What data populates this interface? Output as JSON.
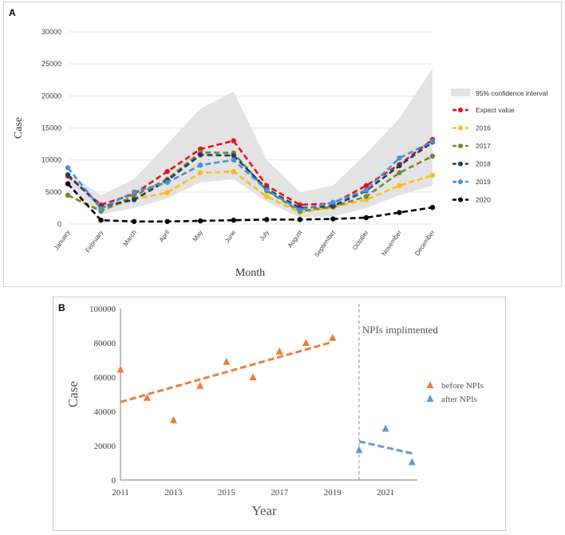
{
  "panel_a": {
    "letter": "A",
    "ylabel": "Case",
    "xlabel": "Month",
    "legend": {
      "ci_label": "95% confidence interval"
    },
    "colors": {
      "Expect value": "#e8111d",
      "2016": "#f5bf19",
      "2017": "#6f8b35",
      "2018": "#1f3f66",
      "2019": "#4a90d9",
      "2020": "#000000",
      "ci": "#e3e3e3"
    }
  },
  "panel_b": {
    "letter": "B",
    "ylabel": "Case",
    "xlabel": "Year",
    "annotation": "NPIs implimented",
    "legend": {
      "before": "before NPIs",
      "after": "after NPIs"
    },
    "colors": {
      "before": "#e8803a",
      "after": "#5b9bd5"
    }
  },
  "chart_data": [
    {
      "type": "line",
      "title": "",
      "xlabel": "Month",
      "ylabel": "Case",
      "ylim": [
        0,
        30000
      ],
      "yticks": [
        0,
        5000,
        10000,
        15000,
        20000,
        25000,
        30000
      ],
      "categories": [
        "January",
        "February",
        "March",
        "April",
        "May",
        "June",
        "July",
        "August",
        "September",
        "October",
        "November",
        "December"
      ],
      "grid": true,
      "legend_position": "right",
      "confidence_interval": {
        "name": "95% confidence interval",
        "lower": [
          6000,
          1500,
          2500,
          4000,
          6500,
          7000,
          3500,
          1000,
          1200,
          2500,
          4500,
          6000
        ],
        "upper": [
          8000,
          4500,
          7000,
          12500,
          18000,
          20700,
          10000,
          5000,
          6000,
          11000,
          16500,
          24300
        ]
      },
      "series": [
        {
          "name": "Expect value",
          "values": [
            7500,
            3000,
            4700,
            8200,
            11700,
            13000,
            6000,
            3000,
            3200,
            6000,
            9300,
            13200
          ]
        },
        {
          "name": "2016",
          "values": [
            4500,
            2200,
            3900,
            4900,
            8000,
            8200,
            4300,
            1800,
            2600,
            3800,
            6000,
            7600
          ]
        },
        {
          "name": "2017",
          "values": [
            4500,
            2000,
            4400,
            7000,
            11200,
            11100,
            5200,
            2000,
            2700,
            4300,
            8000,
            10600
          ]
        },
        {
          "name": "2018",
          "values": [
            7700,
            2700,
            3800,
            6800,
            10800,
            10700,
            5500,
            2500,
            2800,
            5200,
            9100,
            12800
          ]
        },
        {
          "name": "2019",
          "values": [
            8800,
            2400,
            5000,
            6500,
            9200,
            10000,
            5300,
            2200,
            3400,
            5300,
            10300,
            12900
          ]
        },
        {
          "name": "2020",
          "values": [
            6300,
            600,
            400,
            400,
            500,
            600,
            700,
            700,
            800,
            1000,
            1800,
            2600
          ]
        }
      ]
    },
    {
      "type": "scatter",
      "title": "",
      "xlabel": "Year",
      "ylabel": "Case",
      "xlim": [
        2011,
        2022.2
      ],
      "ylim": [
        0,
        100000
      ],
      "xticks": [
        2011,
        2013,
        2015,
        2017,
        2019,
        2021
      ],
      "yticks": [
        0,
        20000,
        40000,
        60000,
        80000,
        100000
      ],
      "legend_position": "right",
      "annotation": {
        "text": "NPIs implimented",
        "x": 2020
      },
      "series": [
        {
          "name": "before NPIs",
          "x": [
            2011,
            2012,
            2013,
            2014,
            2015,
            2016,
            2017,
            2018,
            2019
          ],
          "y": [
            64500,
            48000,
            35000,
            55000,
            69000,
            60000,
            75000,
            80000,
            83000
          ],
          "trend": [
            [
              2011,
              45500
            ],
            [
              2019,
              80500
            ]
          ]
        },
        {
          "name": "after NPIs",
          "x": [
            2020,
            2021,
            2022
          ],
          "y": [
            17500,
            30000,
            10500
          ],
          "trend": [
            [
              2020,
              22500
            ],
            [
              2022,
              15500
            ]
          ]
        }
      ]
    }
  ]
}
